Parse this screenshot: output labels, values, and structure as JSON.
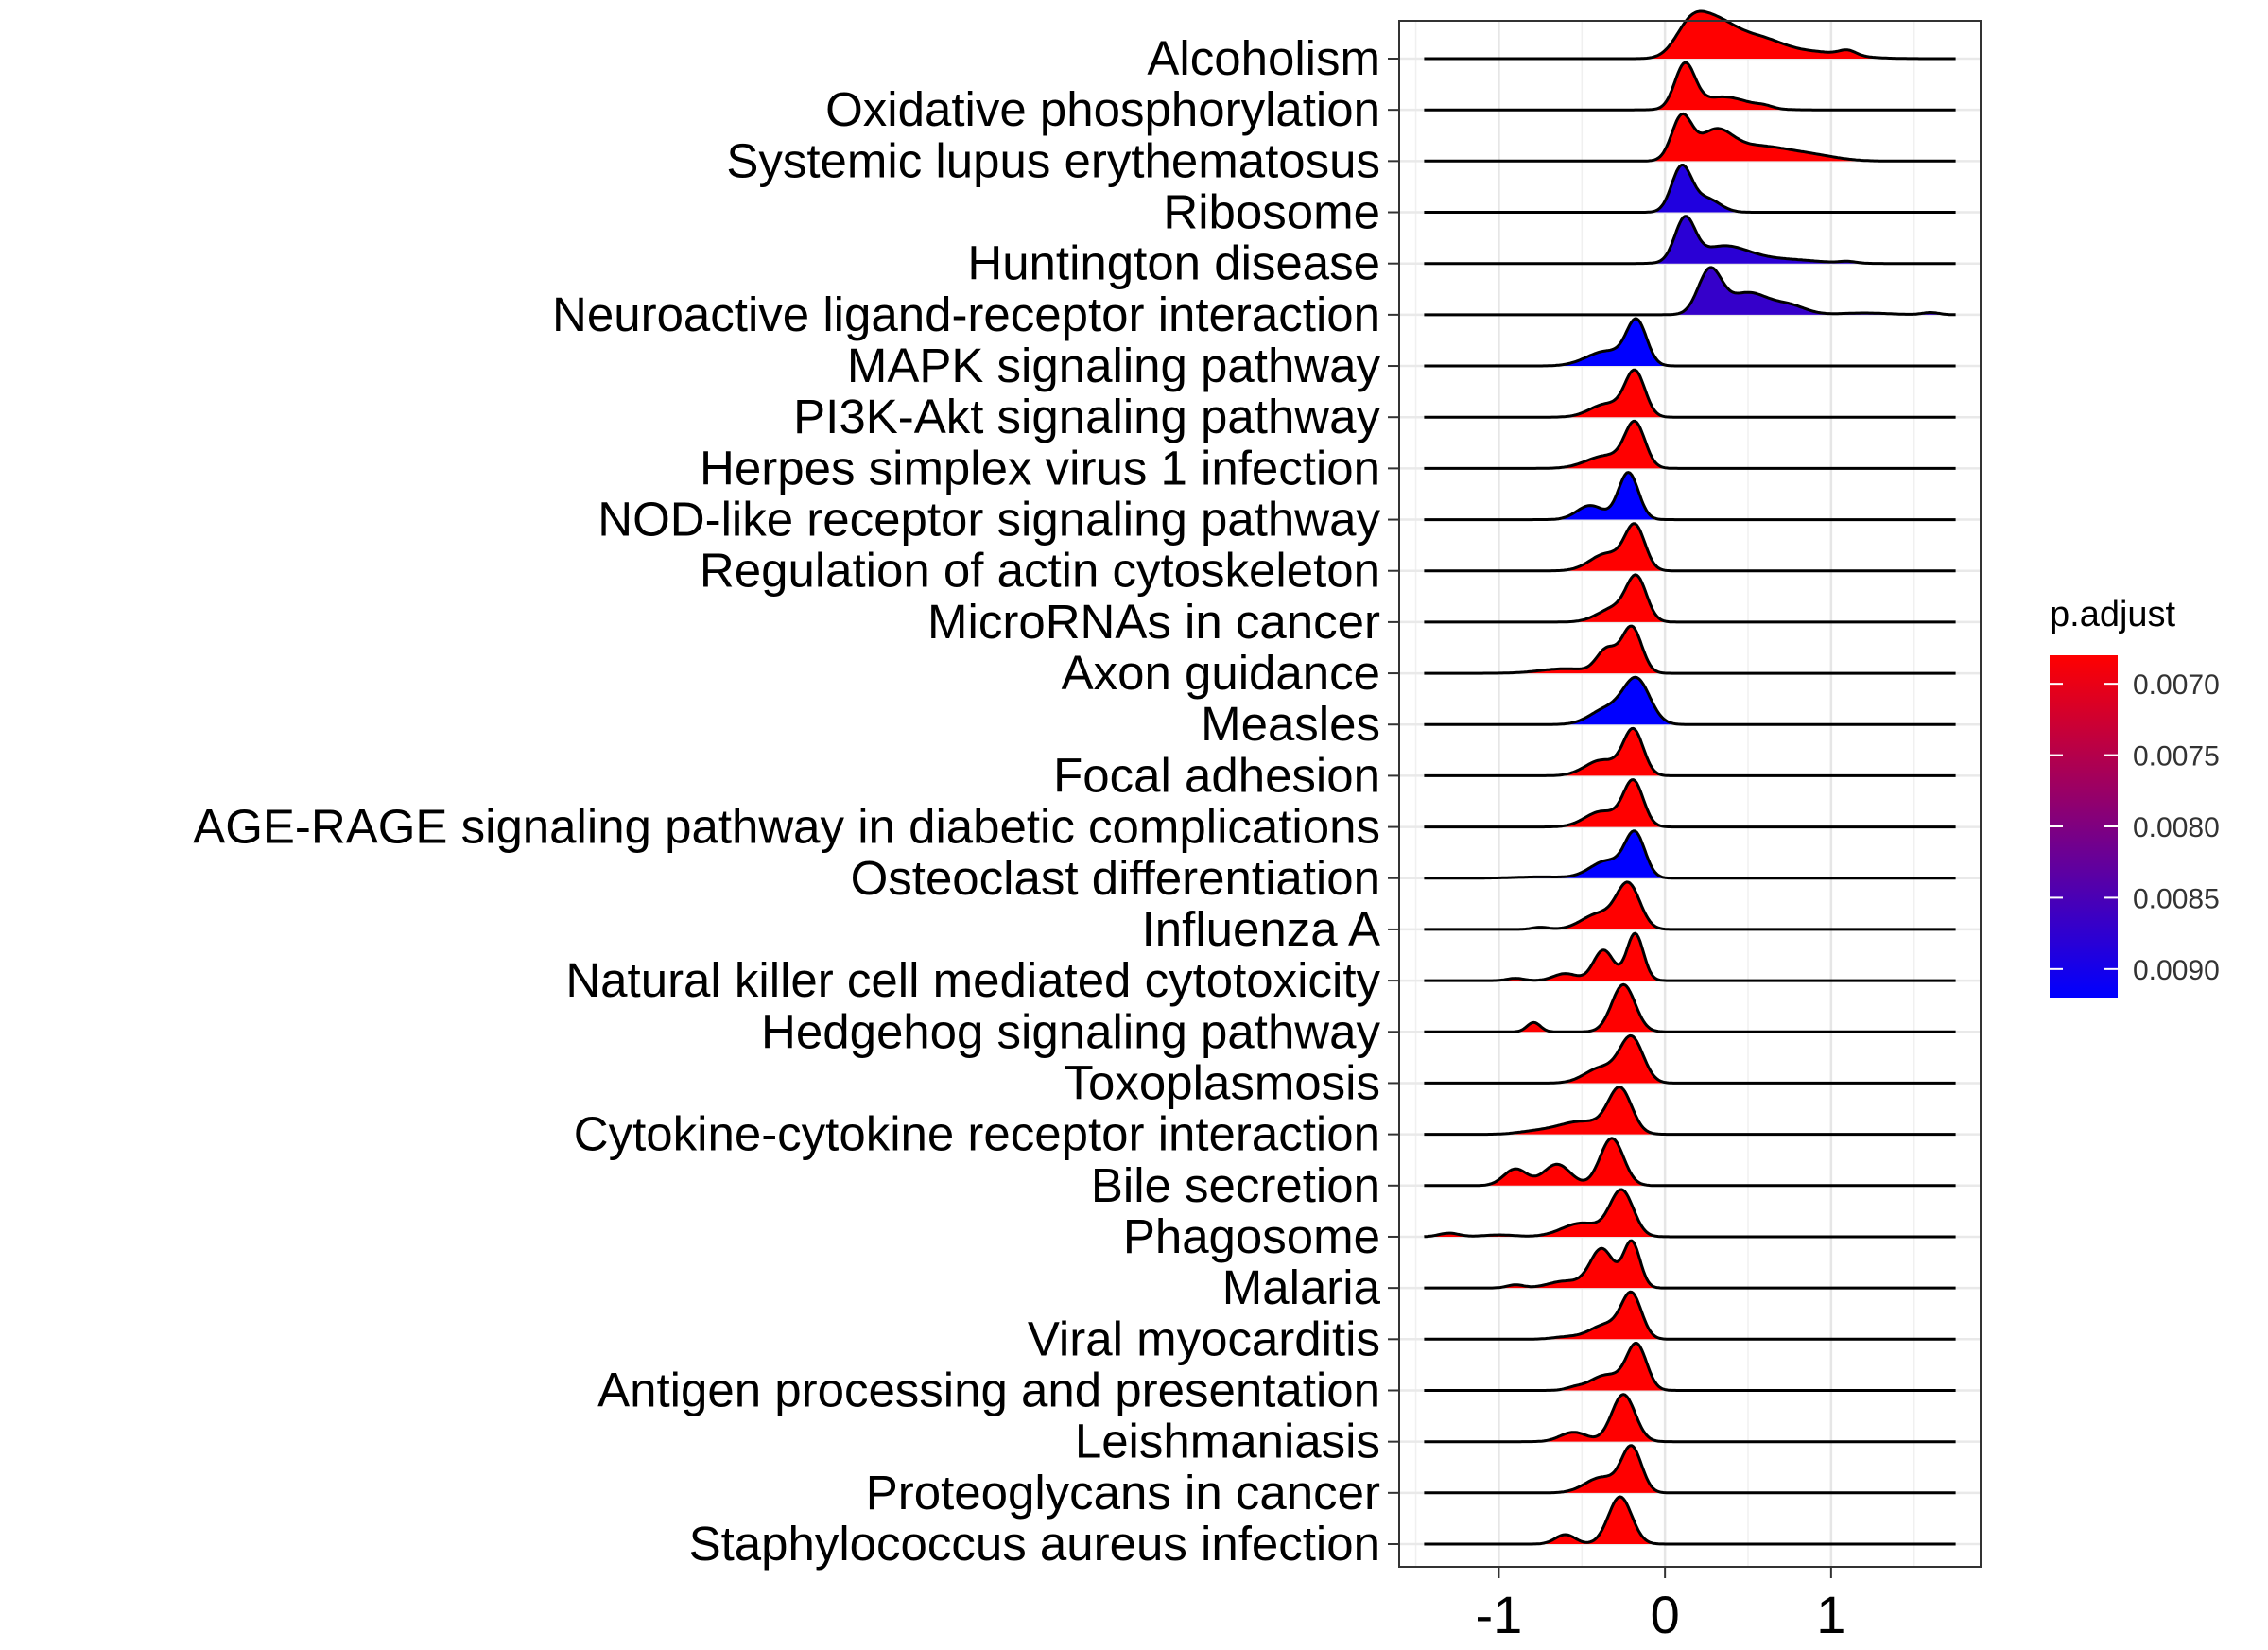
{
  "chart_data": {
    "type": "ridgeline",
    "title": "",
    "xlabel": "",
    "ylabel": "",
    "xlim": [
      -1.6,
      1.9
    ],
    "x_ticks": [
      -1,
      0,
      1
    ],
    "x_tick_labels": [
      "-1",
      "0",
      "1"
    ],
    "grid": true,
    "categories": [
      {
        "name": "Alcoholism",
        "p_adjust": 0.0068,
        "line_from": -1.45,
        "line_to": 1.75,
        "peaks": [
          [
            0.15,
            0.09,
            0.85
          ],
          [
            0.3,
            0.12,
            1.0
          ],
          [
            0.55,
            0.15,
            0.6
          ],
          [
            0.9,
            0.2,
            0.2
          ],
          [
            1.1,
            0.05,
            0.15
          ]
        ]
      },
      {
        "name": "Oxidative phosphorylation",
        "p_adjust": 0.0068,
        "line_from": -1.45,
        "line_to": 1.75,
        "peaks": [
          [
            0.12,
            0.06,
            1.0
          ],
          [
            0.35,
            0.15,
            0.3
          ],
          [
            0.6,
            0.05,
            0.05
          ]
        ]
      },
      {
        "name": "Systemic lupus erythematosus",
        "p_adjust": 0.0068,
        "line_from": -1.45,
        "line_to": 1.75,
        "peaks": [
          [
            0.1,
            0.06,
            1.0
          ],
          [
            0.3,
            0.1,
            0.6
          ],
          [
            0.55,
            0.2,
            0.35
          ],
          [
            0.9,
            0.15,
            0.1
          ]
        ]
      },
      {
        "name": "Ribosome",
        "p_adjust": 0.0089,
        "line_from": -1.45,
        "line_to": 1.75,
        "peaks": [
          [
            0.1,
            0.06,
            1.0
          ],
          [
            0.25,
            0.08,
            0.3
          ]
        ]
      },
      {
        "name": "Huntington disease",
        "p_adjust": 0.0088,
        "line_from": -1.45,
        "line_to": 1.75,
        "peaks": [
          [
            0.12,
            0.06,
            1.0
          ],
          [
            0.35,
            0.15,
            0.4
          ],
          [
            0.7,
            0.2,
            0.1
          ],
          [
            1.1,
            0.05,
            0.04
          ]
        ]
      },
      {
        "name": "Neuroactive ligand-receptor interaction",
        "p_adjust": 0.0087,
        "line_from": -1.45,
        "line_to": 1.75,
        "peaks": [
          [
            0.27,
            0.07,
            1.0
          ],
          [
            0.5,
            0.12,
            0.5
          ],
          [
            0.75,
            0.1,
            0.2
          ],
          [
            1.2,
            0.15,
            0.04
          ],
          [
            1.6,
            0.05,
            0.05
          ]
        ]
      },
      {
        "name": "MAPK signaling pathway",
        "p_adjust": 0.0092,
        "line_from": -1.45,
        "line_to": 1.75,
        "peaks": [
          [
            -0.17,
            0.06,
            1.0
          ],
          [
            -0.35,
            0.12,
            0.35
          ]
        ]
      },
      {
        "name": "PI3K-Akt signaling pathway",
        "p_adjust": 0.0068,
        "line_from": -1.45,
        "line_to": 1.75,
        "peaks": [
          [
            -0.18,
            0.06,
            1.0
          ],
          [
            -0.35,
            0.1,
            0.3
          ]
        ]
      },
      {
        "name": "Herpes simplex virus 1 infection",
        "p_adjust": 0.0068,
        "line_from": -1.45,
        "line_to": 1.75,
        "peaks": [
          [
            -0.18,
            0.06,
            1.0
          ],
          [
            -0.35,
            0.12,
            0.3
          ]
        ]
      },
      {
        "name": "NOD-like receptor signaling pathway",
        "p_adjust": 0.0092,
        "line_from": -1.45,
        "line_to": 1.75,
        "peaks": [
          [
            -0.22,
            0.06,
            1.0
          ],
          [
            -0.45,
            0.08,
            0.3
          ]
        ]
      },
      {
        "name": "Regulation of actin cytoskeleton",
        "p_adjust": 0.0068,
        "line_from": -1.45,
        "line_to": 1.75,
        "peaks": [
          [
            -0.18,
            0.06,
            1.0
          ],
          [
            -0.35,
            0.1,
            0.4
          ]
        ]
      },
      {
        "name": "MicroRNAs in cancer",
        "p_adjust": 0.0068,
        "line_from": -1.45,
        "line_to": 1.75,
        "peaks": [
          [
            -0.17,
            0.06,
            1.0
          ],
          [
            -0.3,
            0.1,
            0.35
          ]
        ]
      },
      {
        "name": "Axon guidance",
        "p_adjust": 0.0068,
        "line_from": -1.45,
        "line_to": 1.75,
        "peaks": [
          [
            -0.2,
            0.06,
            1.0
          ],
          [
            -0.35,
            0.06,
            0.5
          ],
          [
            -0.6,
            0.15,
            0.1
          ]
        ]
      },
      {
        "name": "Measles",
        "p_adjust": 0.0092,
        "line_from": -1.45,
        "line_to": 1.75,
        "peaks": [
          [
            -0.17,
            0.08,
            1.0
          ],
          [
            -0.35,
            0.1,
            0.35
          ]
        ]
      },
      {
        "name": "Focal adhesion",
        "p_adjust": 0.0068,
        "line_from": -1.45,
        "line_to": 1.75,
        "peaks": [
          [
            -0.19,
            0.06,
            1.0
          ],
          [
            -0.38,
            0.1,
            0.35
          ]
        ]
      },
      {
        "name": "AGE-RAGE signaling pathway in diabetic complications",
        "p_adjust": 0.0068,
        "line_from": -1.45,
        "line_to": 1.75,
        "peaks": [
          [
            -0.19,
            0.06,
            1.0
          ],
          [
            -0.38,
            0.1,
            0.35
          ]
        ]
      },
      {
        "name": "Osteoclast differentiation",
        "p_adjust": 0.0092,
        "line_from": -1.45,
        "line_to": 1.75,
        "peaks": [
          [
            -0.18,
            0.06,
            1.0
          ],
          [
            -0.35,
            0.1,
            0.4
          ],
          [
            -0.75,
            0.15,
            0.03
          ]
        ]
      },
      {
        "name": "Influenza A",
        "p_adjust": 0.0068,
        "line_from": -1.45,
        "line_to": 1.75,
        "peaks": [
          [
            -0.22,
            0.07,
            1.0
          ],
          [
            -0.4,
            0.1,
            0.35
          ],
          [
            -0.75,
            0.05,
            0.05
          ]
        ]
      },
      {
        "name": "Natural killer cell mediated cytotoxicity",
        "p_adjust": 0.0068,
        "line_from": -1.45,
        "line_to": 1.75,
        "peaks": [
          [
            -0.18,
            0.05,
            1.0
          ],
          [
            -0.37,
            0.06,
            0.65
          ],
          [
            -0.6,
            0.07,
            0.15
          ],
          [
            -0.9,
            0.05,
            0.05
          ]
        ]
      },
      {
        "name": "Hedgehog signaling pathway",
        "p_adjust": 0.0068,
        "line_from": -1.45,
        "line_to": 1.75,
        "peaks": [
          [
            -0.25,
            0.07,
            1.0
          ],
          [
            -0.79,
            0.04,
            0.2
          ]
        ]
      },
      {
        "name": "Toxoplasmosis",
        "p_adjust": 0.0068,
        "line_from": -1.45,
        "line_to": 1.75,
        "peaks": [
          [
            -0.2,
            0.07,
            1.0
          ],
          [
            -0.38,
            0.1,
            0.35
          ]
        ]
      },
      {
        "name": "Cytokine-cytokine receptor interaction",
        "p_adjust": 0.0068,
        "line_from": -1.45,
        "line_to": 1.75,
        "peaks": [
          [
            -0.27,
            0.07,
            1.0
          ],
          [
            -0.5,
            0.15,
            0.3
          ],
          [
            -0.8,
            0.1,
            0.05
          ]
        ]
      },
      {
        "name": "Bile secretion",
        "p_adjust": 0.0068,
        "line_from": -1.45,
        "line_to": 1.75,
        "peaks": [
          [
            -0.32,
            0.07,
            1.0
          ],
          [
            -0.65,
            0.08,
            0.45
          ],
          [
            -0.9,
            0.07,
            0.35
          ]
        ]
      },
      {
        "name": "Phagosome",
        "p_adjust": 0.0068,
        "line_from": -1.45,
        "line_to": 1.75,
        "peaks": [
          [
            -0.26,
            0.07,
            1.0
          ],
          [
            -0.5,
            0.12,
            0.3
          ],
          [
            -1.3,
            0.06,
            0.08
          ],
          [
            -1.0,
            0.1,
            0.04
          ]
        ]
      },
      {
        "name": "Malaria",
        "p_adjust": 0.0068,
        "line_from": -1.45,
        "line_to": 1.75,
        "peaks": [
          [
            -0.2,
            0.05,
            1.0
          ],
          [
            -0.38,
            0.07,
            0.85
          ],
          [
            -0.6,
            0.1,
            0.15
          ],
          [
            -0.9,
            0.05,
            0.07
          ]
        ]
      },
      {
        "name": "Viral myocarditis",
        "p_adjust": 0.0068,
        "line_from": -1.45,
        "line_to": 1.75,
        "peaks": [
          [
            -0.2,
            0.06,
            1.0
          ],
          [
            -0.35,
            0.1,
            0.35
          ],
          [
            -0.6,
            0.08,
            0.05
          ]
        ]
      },
      {
        "name": "Antigen processing and presentation",
        "p_adjust": 0.0068,
        "line_from": -1.45,
        "line_to": 1.75,
        "peaks": [
          [
            -0.17,
            0.06,
            1.0
          ],
          [
            -0.35,
            0.1,
            0.35
          ],
          [
            -0.55,
            0.05,
            0.05
          ]
        ]
      },
      {
        "name": "Leishmaniasis",
        "p_adjust": 0.0068,
        "line_from": -1.45,
        "line_to": 1.75,
        "peaks": [
          [
            -0.25,
            0.07,
            1.0
          ],
          [
            -0.55,
            0.08,
            0.2
          ]
        ]
      },
      {
        "name": "Proteoglycans in cancer",
        "p_adjust": 0.0068,
        "line_from": -1.45,
        "line_to": 1.75,
        "peaks": [
          [
            -0.2,
            0.06,
            1.0
          ],
          [
            -0.38,
            0.1,
            0.35
          ]
        ]
      },
      {
        "name": "Staphylococcus aureus infection",
        "p_adjust": 0.0068,
        "line_from": -1.45,
        "line_to": 1.75,
        "peaks": [
          [
            -0.27,
            0.07,
            1.0
          ],
          [
            -0.6,
            0.06,
            0.2
          ]
        ]
      }
    ],
    "legend": {
      "title": "p.adjust",
      "placement": "right",
      "color_low_value": "#FF0000",
      "color_high_value": "#0000FF",
      "range": [
        0.0068,
        0.0092
      ],
      "ticks": [
        0.007,
        0.0075,
        0.008,
        0.0085,
        0.009
      ],
      "tick_labels": [
        "0.0070",
        "0.0075",
        "0.0080",
        "0.0085",
        "0.0090"
      ]
    }
  }
}
